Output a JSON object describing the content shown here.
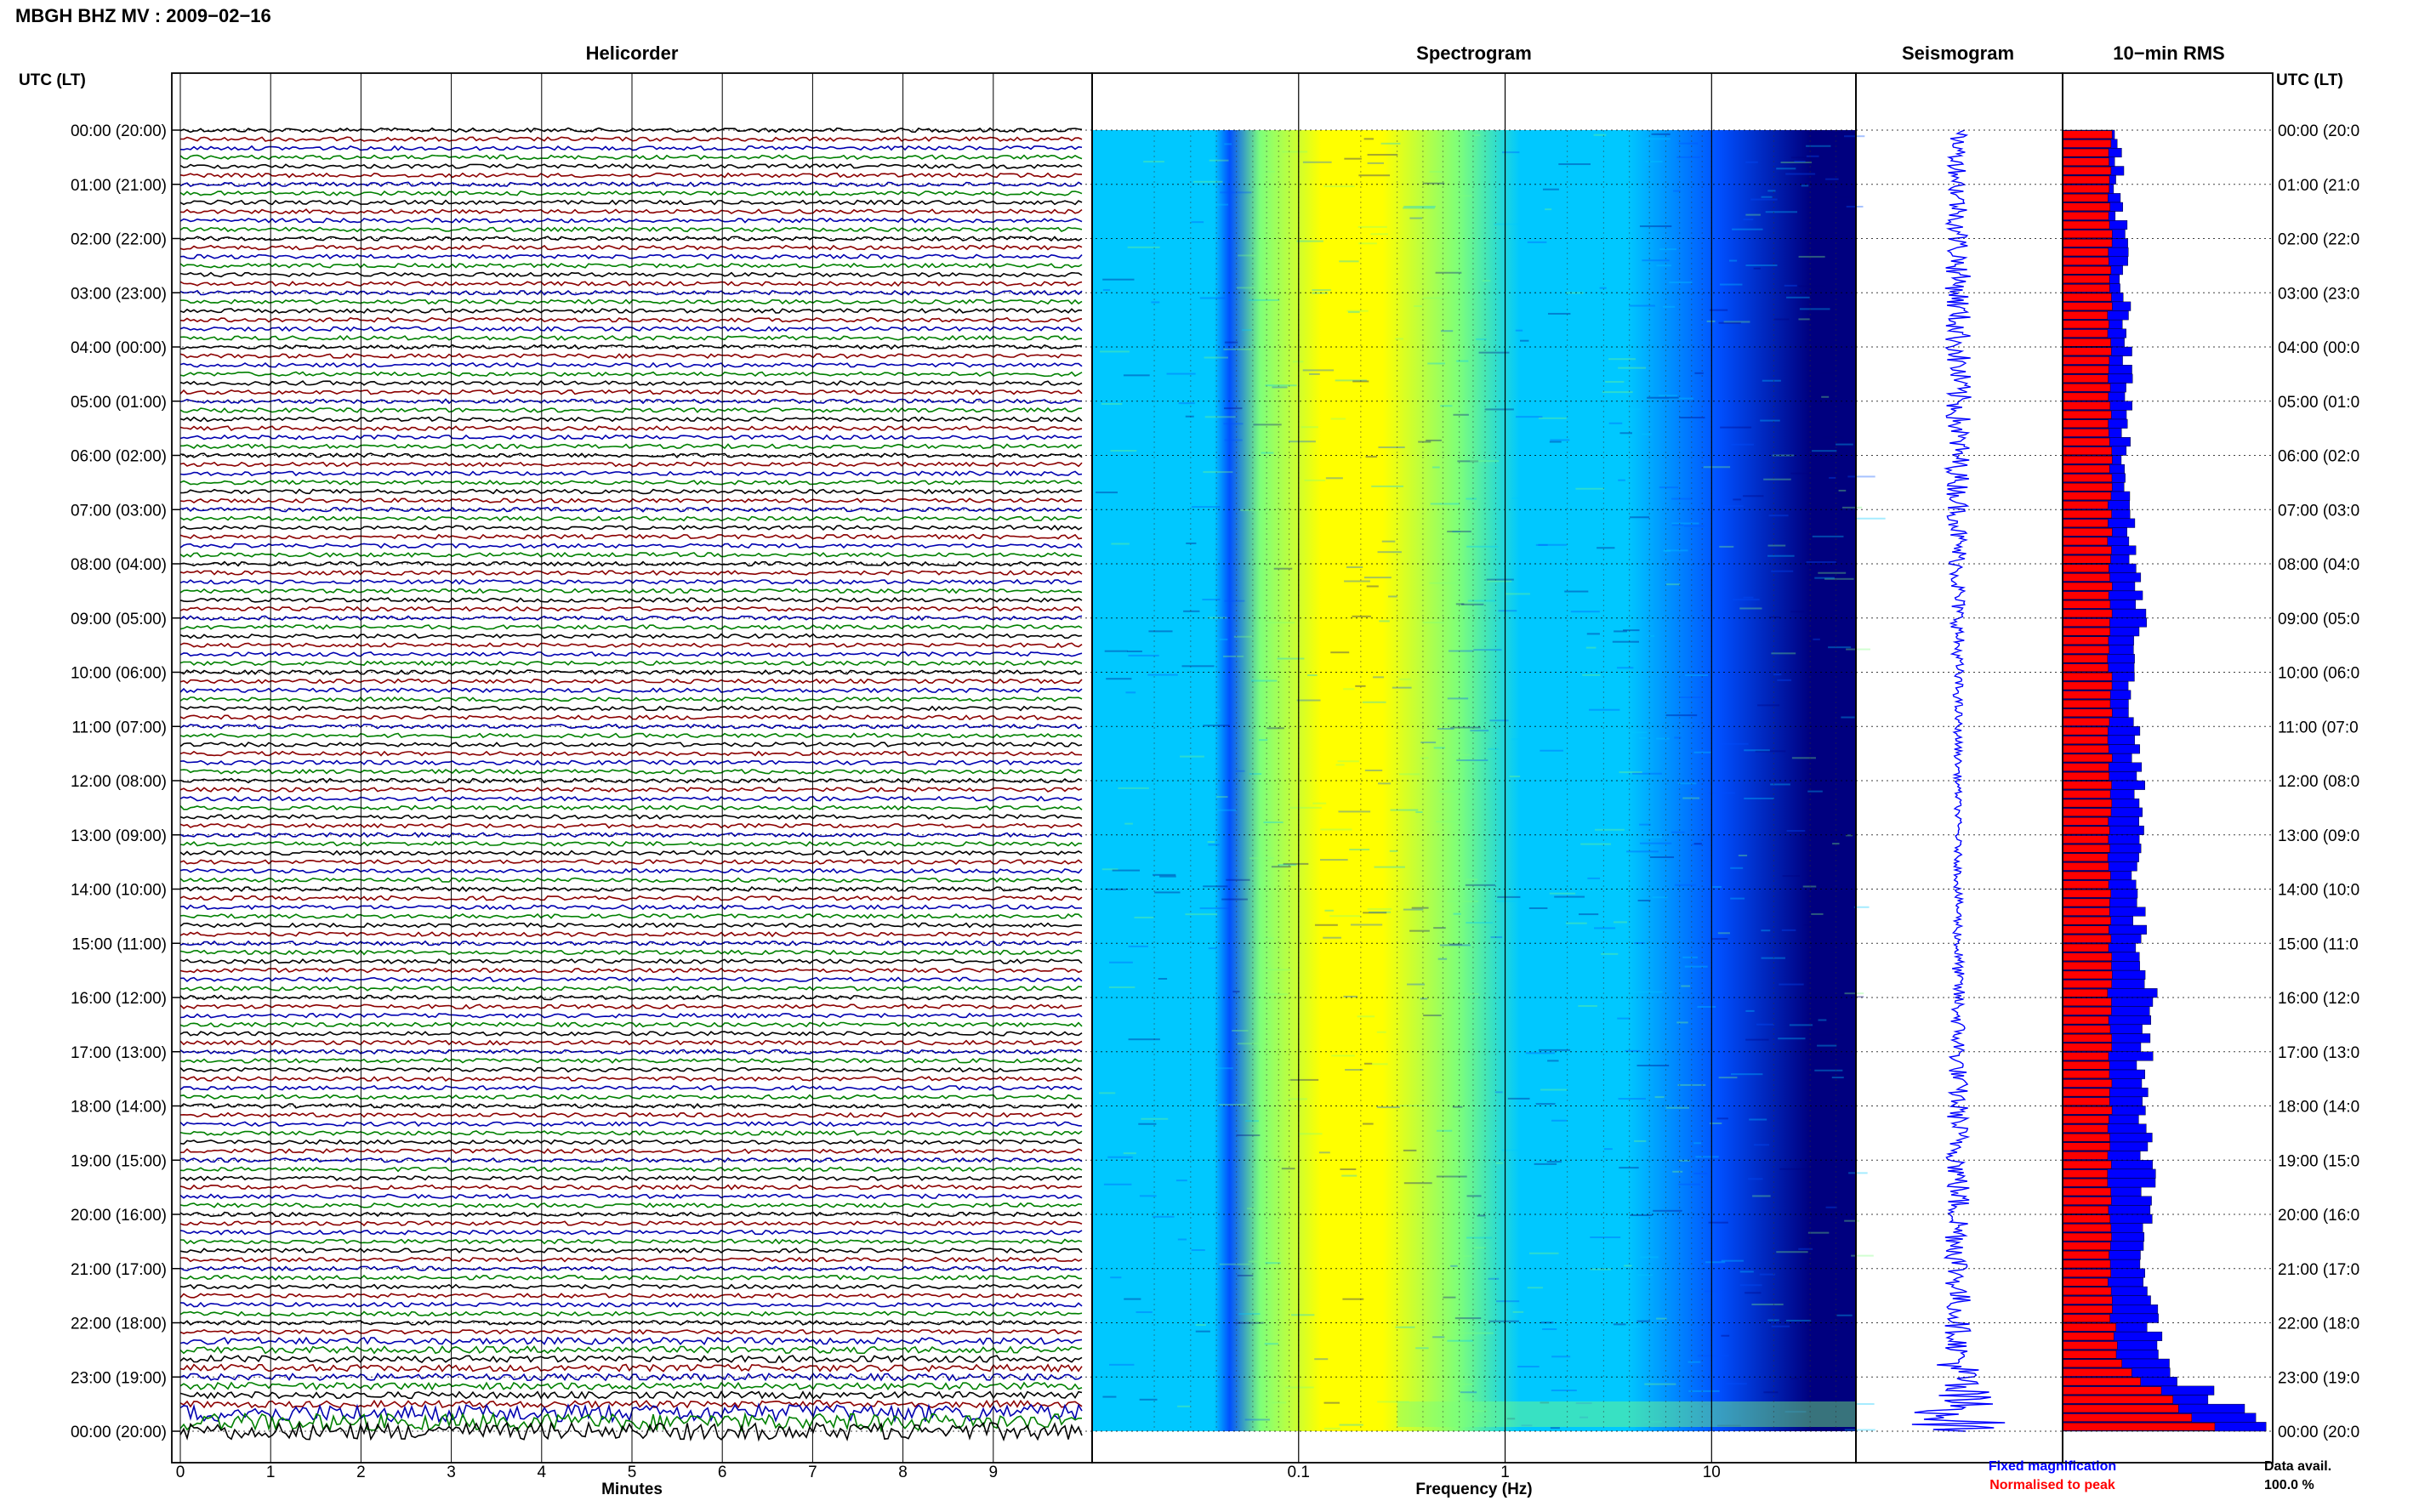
{
  "title": "MBGH BHZ MV : 2009−02−16",
  "utc_label_left": "UTC (LT)",
  "utc_label_right": "UTC (LT)",
  "panels": {
    "helicorder": "Helicorder",
    "spectrogram": "Spectrogram",
    "seismogram": "Seismogram",
    "rms": "10−min RMS"
  },
  "legend": {
    "fixed": "Fixed magnification",
    "normalised": "Normalised to peak",
    "data_avail_label": "Data avail.",
    "data_avail_value": "100.0 %"
  },
  "colors": {
    "fixed": "#0000ff",
    "normalised": "#ff0000",
    "trace_cycle": [
      "#000000",
      "#8b0000",
      "#0000b0",
      "#008000"
    ]
  },
  "chart_data": [
    {
      "type": "line",
      "title": "Helicorder",
      "xlabel": "Minutes",
      "ylabel": "",
      "x_ticks": [
        "0",
        "1",
        "2",
        "3",
        "4",
        "5",
        "6",
        "7",
        "8",
        "9"
      ],
      "xlim": [
        0,
        10
      ],
      "traces_per_hour": 6,
      "time_labels_left": [
        "00:00 (20:00)",
        "01:00 (21:00)",
        "02:00 (22:00)",
        "03:00 (23:00)",
        "04:00 (00:00)",
        "05:00 (01:00)",
        "06:00 (02:00)",
        "07:00 (03:00)",
        "08:00 (04:00)",
        "09:00 (05:00)",
        "10:00 (06:00)",
        "11:00 (07:00)",
        "12:00 (08:00)",
        "13:00 (09:00)",
        "14:00 (10:00)",
        "15:00 (11:00)",
        "16:00 (12:00)",
        "17:00 (13:00)",
        "18:00 (14:00)",
        "19:00 (15:00)",
        "20:00 (16:00)",
        "21:00 (17:00)",
        "22:00 (18:00)",
        "23:00 (19:00)",
        "00:00 (20:00)"
      ],
      "time_labels_right": [
        "00:00 (20:0",
        "01:00 (21:0",
        "02:00 (22:0",
        "03:00 (23:0",
        "04:00 (00:0",
        "05:00 (01:0",
        "06:00 (02:0",
        "07:00 (03:0",
        "08:00 (04:0",
        "09:00 (05:0",
        "10:00 (06:0",
        "11:00 (07:0",
        "12:00 (08:0",
        "13:00 (09:0",
        "14:00 (10:0",
        "15:00 (11:0",
        "16:00 (12:0",
        "17:00 (13:0",
        "18:00 (14:0",
        "19:00 (15:0",
        "20:00 (16:0",
        "21:00 (17:0",
        "22:00 (18:0",
        "23:00 (19:0",
        "00:00 (20:0"
      ]
    },
    {
      "type": "heatmap",
      "title": "Spectrogram",
      "xlabel": "Frequency (Hz)",
      "x_scale": "log",
      "xlim": [
        0.01,
        50
      ],
      "x_tick_labels": [
        "0.1",
        "1",
        "10"
      ],
      "x_tick_values": [
        0.1,
        1,
        10
      ],
      "peak_energy_hz": 0.25,
      "colormap": [
        "#00007f",
        "#0050ff",
        "#00c8ff",
        "#7dff7a",
        "#ffff00"
      ]
    },
    {
      "type": "line",
      "title": "Seismogram",
      "note": "24-hour trace with large amplitude increase in the final hour"
    },
    {
      "type": "bar",
      "title": "10−min RMS",
      "orientation": "horizontal",
      "series": [
        {
          "name": "Fixed magnification",
          "color": "#0000ff",
          "values": [
            0.55,
            0.55,
            0.6,
            0.6,
            0.65,
            0.6,
            0.65,
            0.7,
            0.75,
            0.7,
            0.7,
            0.75,
            0.7,
            0.75,
            0.85,
            0.8,
            0.8,
            0.85,
            0.8,
            0.85,
            0.95,
            1.9
          ]
        },
        {
          "name": "Normalised to peak",
          "color": "#ff0000",
          "values": [
            0.45,
            0.45,
            0.45,
            0.45,
            0.45,
            0.45,
            0.45,
            0.45,
            0.45,
            0.45,
            0.45,
            0.45,
            0.45,
            0.45,
            0.45,
            0.45,
            0.45,
            0.45,
            0.45,
            0.45,
            0.55,
            1.4
          ]
        }
      ]
    }
  ]
}
